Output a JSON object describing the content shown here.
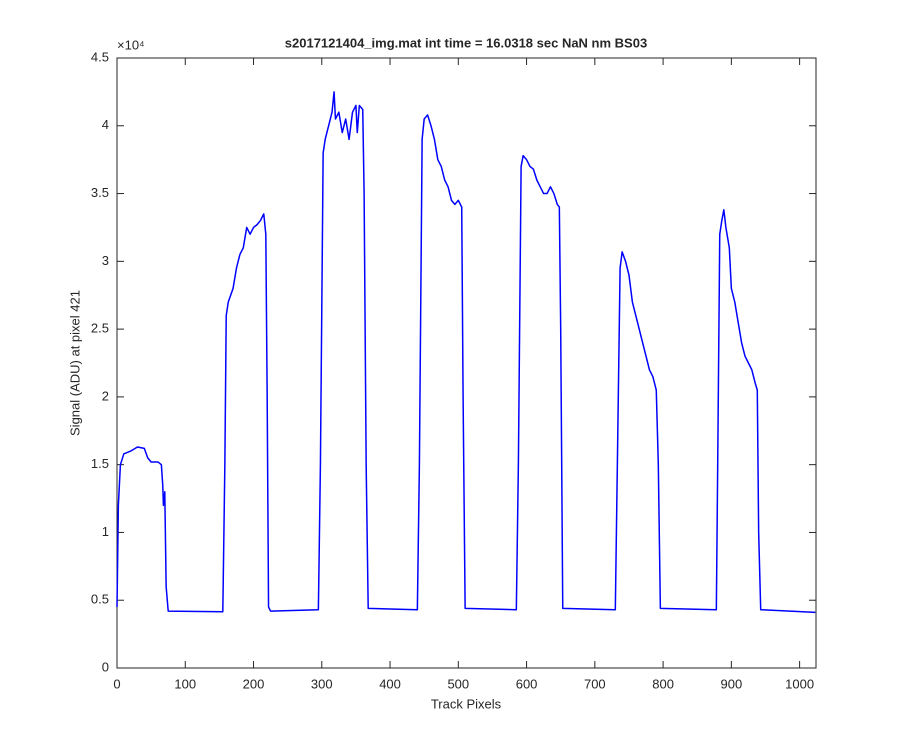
{
  "chart_data": {
    "type": "line",
    "title": "s2017121404_img.mat int time = 16.0318 sec  NaN nm BS03",
    "xlabel": "Track Pixels",
    "ylabel": "Signal (ADU) at pixel 421",
    "y_exponent": "×10⁴",
    "x": [
      0,
      2,
      5,
      10,
      20,
      30,
      40,
      45,
      50,
      60,
      65,
      67,
      68,
      70,
      72,
      75,
      155,
      158,
      160,
      163,
      170,
      175,
      180,
      185,
      190,
      195,
      200,
      205,
      210,
      215,
      218,
      220,
      222,
      225,
      295,
      298,
      302,
      305,
      310,
      315,
      318,
      320,
      325,
      330,
      335,
      340,
      345,
      350,
      352,
      355,
      360,
      362,
      365,
      368,
      440,
      443,
      447,
      450,
      455,
      460,
      465,
      470,
      475,
      480,
      485,
      490,
      495,
      500,
      505,
      507,
      510,
      585,
      588,
      592,
      595,
      600,
      605,
      610,
      615,
      620,
      625,
      630,
      635,
      640,
      645,
      648,
      650,
      653,
      730,
      733,
      737,
      740,
      745,
      750,
      755,
      760,
      765,
      770,
      775,
      780,
      785,
      790,
      793,
      796,
      878,
      880,
      883,
      886,
      889,
      892,
      897,
      900,
      905,
      910,
      915,
      920,
      925,
      930,
      935,
      938,
      940,
      943,
      1023
    ],
    "series": [
      {
        "name": "signal",
        "color": "#0000ff",
        "values": [
          0.45,
          1.2,
          1.5,
          1.58,
          1.6,
          1.63,
          1.62,
          1.55,
          1.52,
          1.52,
          1.5,
          1.35,
          1.2,
          1.3,
          0.6,
          0.42,
          0.415,
          1.5,
          2.6,
          2.7,
          2.8,
          2.95,
          3.05,
          3.1,
          3.25,
          3.2,
          3.25,
          3.27,
          3.3,
          3.35,
          3.2,
          2.0,
          0.45,
          0.42,
          0.43,
          1.5,
          3.8,
          3.9,
          4.0,
          4.1,
          4.25,
          4.05,
          4.1,
          3.95,
          4.05,
          3.9,
          4.1,
          4.15,
          3.95,
          4.15,
          4.12,
          3.5,
          1.5,
          0.44,
          0.43,
          1.5,
          3.9,
          4.05,
          4.08,
          4.0,
          3.9,
          3.75,
          3.7,
          3.6,
          3.55,
          3.45,
          3.42,
          3.45,
          3.4,
          2.0,
          0.44,
          0.43,
          1.5,
          3.7,
          3.78,
          3.75,
          3.7,
          3.68,
          3.6,
          3.55,
          3.5,
          3.5,
          3.55,
          3.5,
          3.42,
          3.4,
          2.5,
          0.44,
          0.43,
          1.5,
          2.95,
          3.07,
          3.0,
          2.9,
          2.7,
          2.6,
          2.5,
          2.4,
          2.3,
          2.2,
          2.15,
          2.05,
          1.5,
          0.44,
          0.43,
          1.5,
          3.2,
          3.3,
          3.38,
          3.25,
          3.1,
          2.8,
          2.7,
          2.55,
          2.4,
          2.3,
          2.25,
          2.2,
          2.1,
          2.05,
          1.0,
          0.43,
          0.41
        ]
      }
    ],
    "xlim": [
      0,
      1024
    ],
    "xticks": [
      0,
      100,
      200,
      300,
      400,
      500,
      600,
      700,
      800,
      900,
      1000
    ],
    "ylim": [
      0,
      4.5
    ],
    "yticks": [
      0,
      0.5,
      1,
      1.5,
      2,
      2.5,
      3,
      3.5,
      4,
      4.5
    ]
  }
}
